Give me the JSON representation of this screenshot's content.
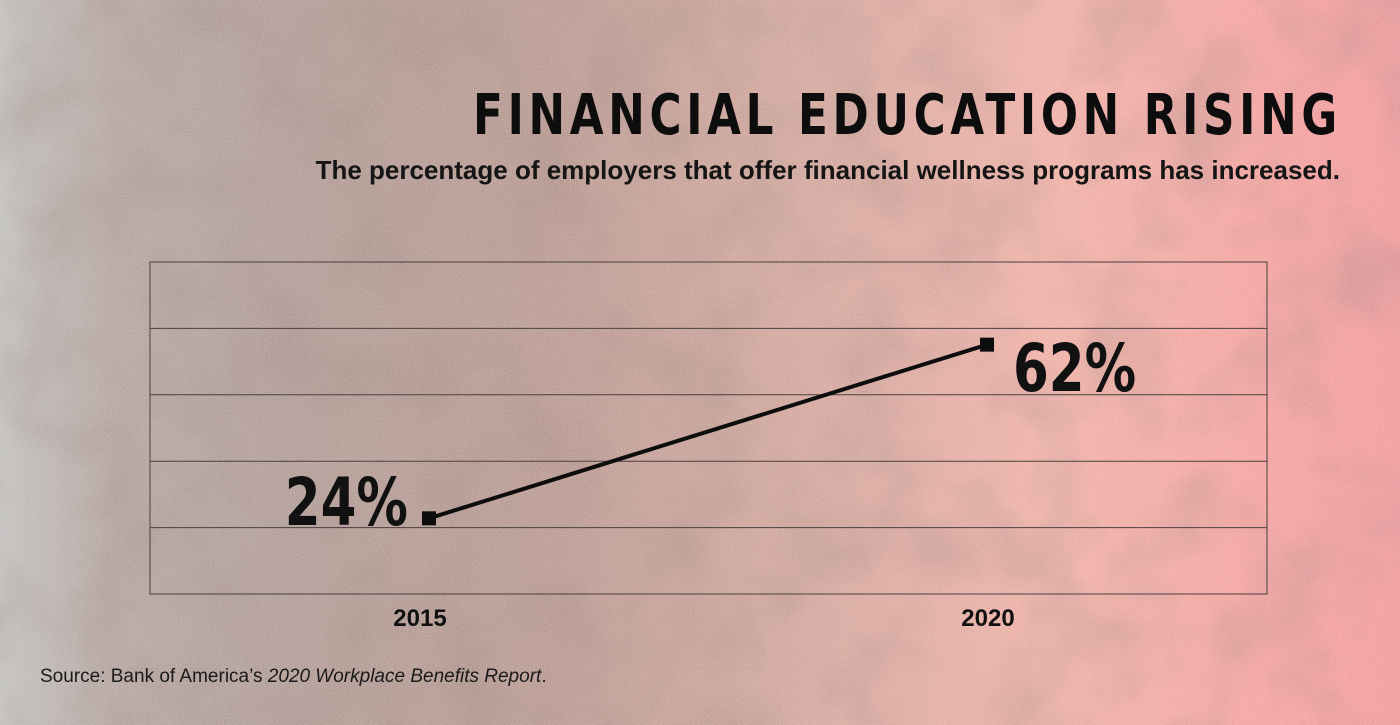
{
  "header": {
    "title": "FINANCIAL EDUCATION RISING",
    "subtitle": "The percentage of employers that offer financial wellness programs has increased."
  },
  "source": {
    "prefix": "Source: Bank of America’s ",
    "report": "2020 Workplace Benefits Report",
    "suffix": "."
  },
  "colors": {
    "line": "#0d0d0d",
    "grid": "#4a4040",
    "text": "#111111",
    "background_left": "#c4c2c0",
    "background_right": "#f29ea0"
  },
  "chart_data": {
    "type": "line",
    "x": [
      "2015",
      "2020"
    ],
    "series": [
      {
        "values": [
          24,
          62
        ],
        "labels": [
          "24%",
          "62%"
        ]
      }
    ],
    "xlabel": "",
    "ylabel": "",
    "ylim": [
      0,
      100
    ],
    "grid": true,
    "legend": "none"
  }
}
